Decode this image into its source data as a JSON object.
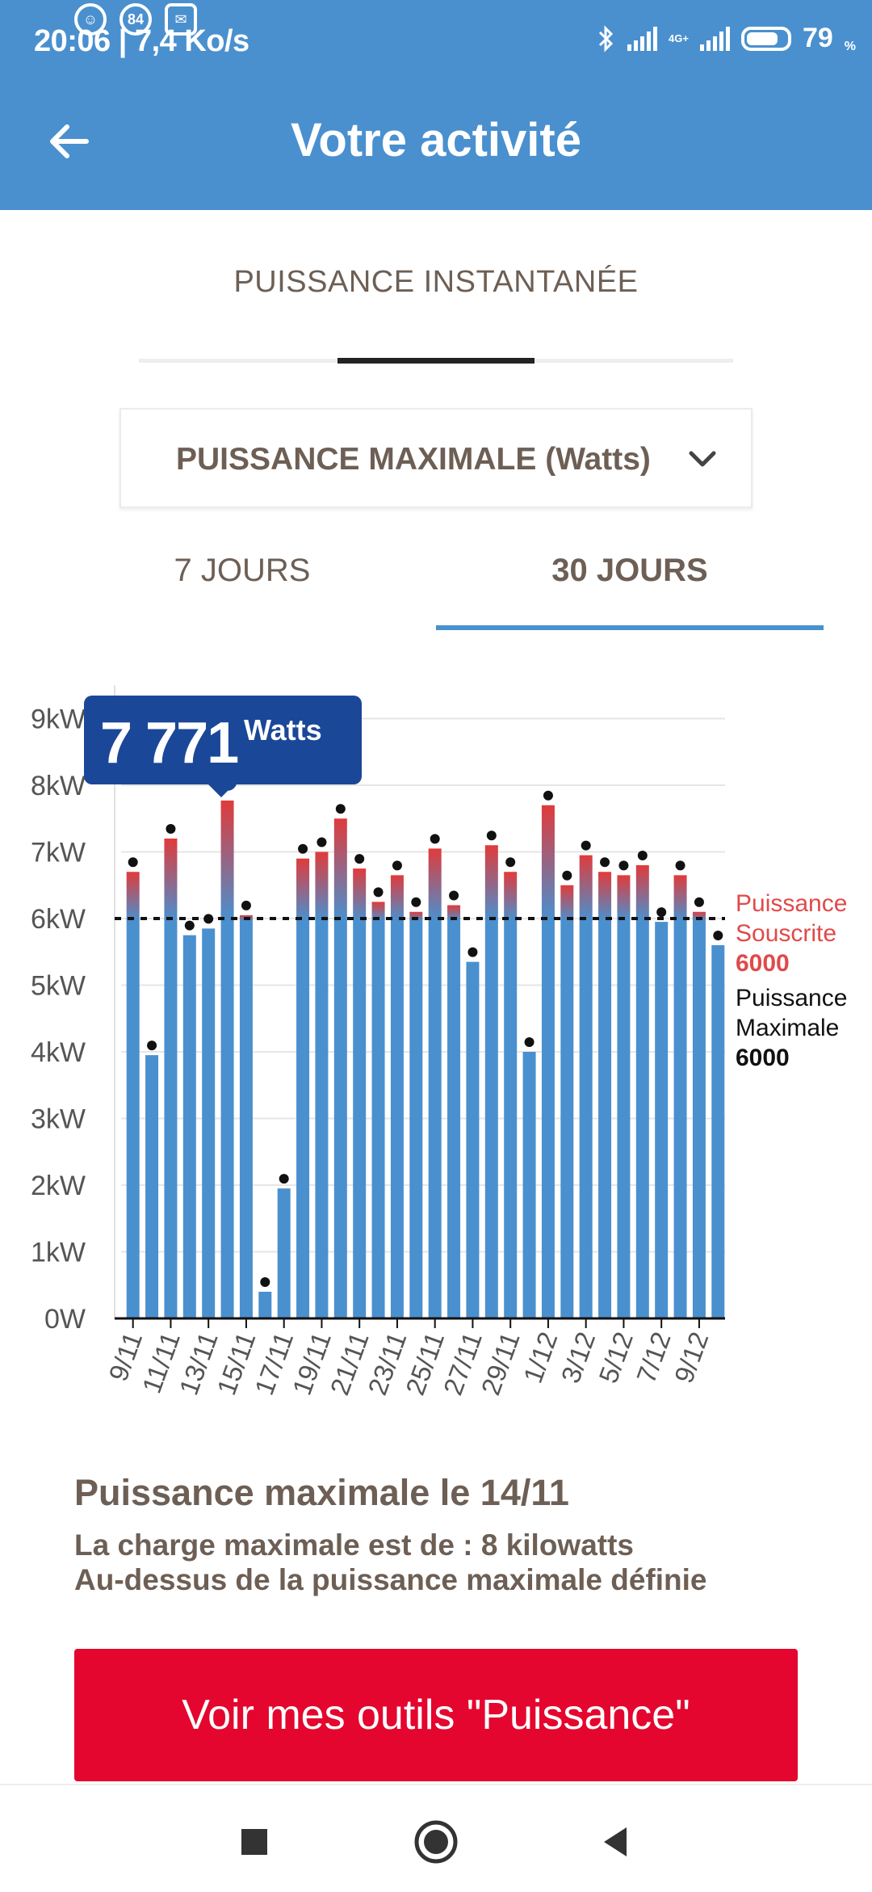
{
  "status_bar": {
    "time": "20:06",
    "speed": "7,4 Ko/s",
    "notif_badge": "84",
    "battery": "79",
    "battery_unit": "%",
    "network": "4G+"
  },
  "header": {
    "title": "Votre activité"
  },
  "section_tab": {
    "label": "PUISSANCE INSTANTANÉE"
  },
  "dropdown": {
    "selected": "PUISSANCE MAXIMALE (Watts)"
  },
  "period_tabs": [
    {
      "label": "7 JOURS",
      "active": false
    },
    {
      "label": "30 JOURS",
      "active": true
    }
  ],
  "tooltip": {
    "value": "7 771",
    "unit": "Watts"
  },
  "legend": {
    "subscribed_label_1": "Puissance",
    "subscribed_label_2": "Souscrite",
    "subscribed_value": "6000",
    "max_label_1": "Puissance",
    "max_label_2": "Maximale",
    "max_value": "6000"
  },
  "chart_data": {
    "type": "bar",
    "y_ticks": [
      "0W",
      "1kW",
      "2kW",
      "3kW",
      "4kW",
      "5kW",
      "6kW",
      "7kW",
      "8kW",
      "9kW"
    ],
    "ylim": [
      0,
      9500
    ],
    "x_tick_labels": [
      "9/11",
      "11/11",
      "13/11",
      "15/11",
      "17/11",
      "19/11",
      "21/11",
      "23/11",
      "25/11",
      "27/11",
      "29/11",
      "1/12",
      "3/12",
      "5/12",
      "7/12",
      "9/12"
    ],
    "categories": [
      "9/11",
      "10/11",
      "11/11",
      "12/11",
      "13/11",
      "14/11",
      "15/11",
      "16/11",
      "17/11",
      "18/11",
      "19/11",
      "20/11",
      "21/11",
      "22/11",
      "23/11",
      "24/11",
      "25/11",
      "26/11",
      "27/11",
      "28/11",
      "29/11",
      "30/11",
      "1/12",
      "2/12",
      "3/12",
      "4/12",
      "5/12",
      "6/12",
      "7/12",
      "8/12",
      "9/12",
      "10/12"
    ],
    "values": [
      6700,
      3950,
      7200,
      5750,
      5850,
      7771,
      6050,
      400,
      1950,
      6900,
      7000,
      7500,
      6750,
      6250,
      6650,
      6100,
      7050,
      6200,
      5350,
      7100,
      6700,
      4000,
      7700,
      6500,
      6950,
      6700,
      6650,
      6800,
      5950,
      6650,
      6100,
      5600
    ],
    "threshold": 6000,
    "colors": {
      "below": "#4a90cf",
      "above": "#e03b3b",
      "threshold_line": "#111111",
      "tooltip_bg": "#1b4798"
    }
  },
  "info": {
    "title": "Puissance maximale le 14/11",
    "line1": "La charge maximale est de : 8 kilowatts",
    "line2": "Au-dessus de la puissance maximale définie"
  },
  "cta": {
    "label": "Voir mes outils \"Puissance\""
  },
  "nav": {
    "icons": [
      "square-recent-icon",
      "circle-home-icon",
      "triangle-back-icon"
    ]
  }
}
